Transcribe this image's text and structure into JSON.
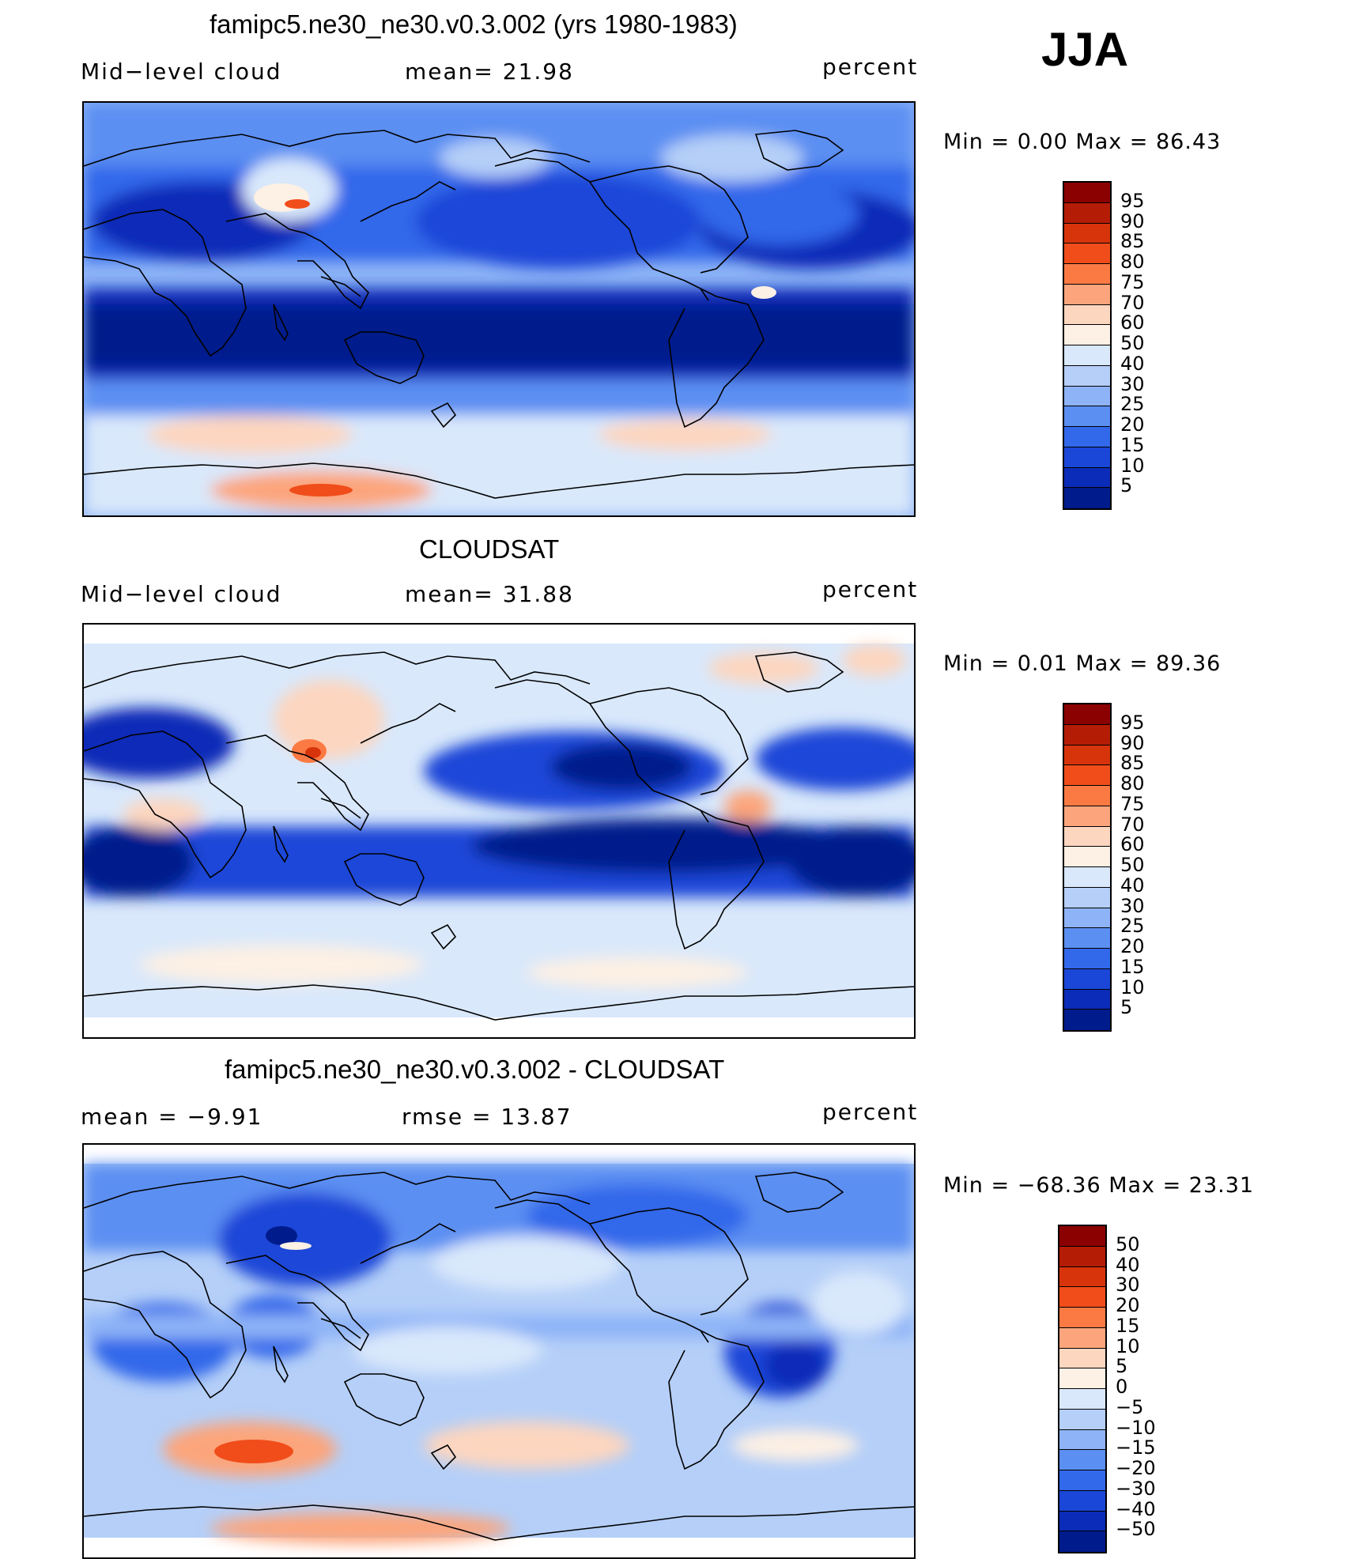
{
  "season": "JJA",
  "panels": [
    {
      "title": "famipc5.ne30_ne30.v0.3.002 (yrs 1980-1983)",
      "left_label": "Mid−level cloud",
      "center_label": "mean=   21.98",
      "right_label": "percent",
      "minmax": "Min  =     0.00  Max  =    86.43"
    },
    {
      "title": "CLOUDSAT",
      "left_label": "Mid−level cloud",
      "center_label": "mean=   31.88",
      "right_label": "percent",
      "minmax": "Min  =     0.01  Max  =    89.36"
    },
    {
      "title": "famipc5.ne30_ne30.v0.3.002 - CLOUDSAT",
      "left_label": "mean  =    −9.91",
      "center_label": "rmse  =    13.87",
      "right_label": "percent",
      "minmax": "Min  = −68.36  Max  =    23.31"
    }
  ],
  "colorbar_abs": {
    "labels": [
      "95",
      "90",
      "85",
      "80",
      "75",
      "70",
      "60",
      "50",
      "40",
      "30",
      "25",
      "20",
      "15",
      "10",
      "5"
    ],
    "colors": [
      "#8b0000",
      "#b51c05",
      "#d8340c",
      "#f04d1b",
      "#fb7a44",
      "#fca57c",
      "#fdd6bf",
      "#fdf0e4",
      "#d9e8fb",
      "#b5cff8",
      "#8eb4f7",
      "#5b8ff2",
      "#3268ea",
      "#1a47d8",
      "#0a2cb8",
      "#001b8c"
    ]
  },
  "colorbar_diff": {
    "labels": [
      "50",
      "40",
      "30",
      "20",
      "15",
      "10",
      "5",
      "0",
      "−5",
      "−10",
      "−15",
      "−20",
      "−30",
      "−40",
      "−50"
    ],
    "colors": [
      "#8b0000",
      "#b51c05",
      "#d8340c",
      "#f04d1b",
      "#fb7a44",
      "#fca57c",
      "#fdd6bf",
      "#fdf0e4",
      "#d9e8fb",
      "#b5cff8",
      "#8eb4f7",
      "#5b8ff2",
      "#3268ea",
      "#1a47d8",
      "#0a2cb8",
      "#001b8c"
    ]
  }
}
